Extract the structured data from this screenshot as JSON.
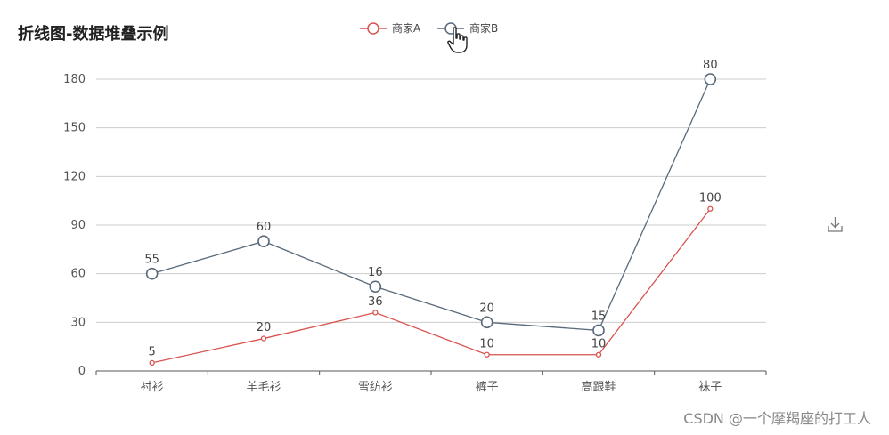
{
  "colors": {
    "seriesA": "#d9534f",
    "seriesB": "#596a7b",
    "grid": "#cccccc",
    "axis": "#555555"
  },
  "icons": {
    "toolbox": "download-icon",
    "cursor": "pointer-hand-icon"
  },
  "watermark": "CSDN @一个摩羯座的打工人",
  "chart_data": {
    "type": "line",
    "title": "折线图-数据堆叠示例",
    "categories": [
      "衬衫",
      "羊毛衫",
      "雪纺衫",
      "裤子",
      "高跟鞋",
      "袜子"
    ],
    "ylim": [
      0,
      180
    ],
    "yticks": [
      0,
      30,
      60,
      90,
      120,
      150,
      180
    ],
    "stacked": true,
    "grid": "horizontal",
    "legend_position": "top-center",
    "series": [
      {
        "name": "商家A",
        "values": [
          5,
          20,
          36,
          10,
          10,
          100
        ],
        "plotted": [
          5,
          20,
          36,
          10,
          10,
          100
        ]
      },
      {
        "name": "商家B",
        "values": [
          55,
          60,
          16,
          20,
          15,
          80
        ],
        "plotted": [
          60,
          80,
          52,
          30,
          25,
          180
        ]
      }
    ]
  }
}
